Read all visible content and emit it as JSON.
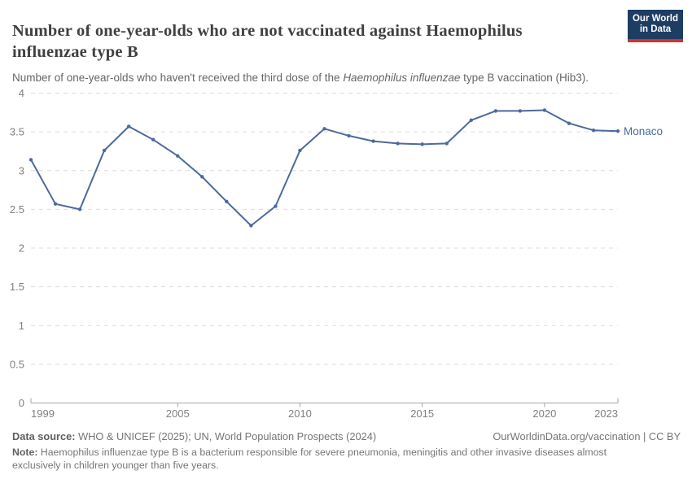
{
  "header": {
    "title": "Number of one-year-olds who are not vaccinated against Haemophilus influenzae type B",
    "subtitle_prefix": "Number of one-year-olds who haven't received the third dose of the ",
    "subtitle_italic": "Haemophilus influenzae",
    "subtitle_suffix": " type B vaccination (Hib3).",
    "logo_line1": "Our World",
    "logo_line2": "in Data"
  },
  "chart_data": {
    "type": "line",
    "title": "Number of one-year-olds who are not vaccinated against Haemophilus influenzae type B",
    "subtitle": "Number of one-year-olds who haven't received the third dose of the Haemophilus influenzae type B vaccination (Hib3).",
    "x": [
      1999,
      2000,
      2001,
      2002,
      2003,
      2004,
      2005,
      2006,
      2007,
      2008,
      2009,
      2010,
      2011,
      2012,
      2013,
      2014,
      2015,
      2016,
      2017,
      2018,
      2019,
      2020,
      2021,
      2022,
      2023
    ],
    "series": [
      {
        "name": "Monaco",
        "color": "#4c6a9c",
        "values": [
          3.14,
          2.57,
          2.5,
          3.26,
          3.57,
          3.4,
          3.19,
          2.92,
          2.6,
          2.29,
          2.54,
          3.26,
          3.54,
          3.45,
          3.38,
          3.35,
          3.34,
          3.35,
          3.65,
          3.77,
          3.77,
          3.78,
          3.61,
          3.52,
          3.51
        ]
      }
    ],
    "x_ticks": [
      1999,
      2005,
      2010,
      2015,
      2020,
      2023
    ],
    "y_ticks": [
      0,
      0.5,
      1,
      1.5,
      2,
      2.5,
      3,
      3.5,
      4
    ],
    "xlim": [
      1999,
      2023
    ],
    "ylim": [
      0,
      4
    ],
    "xlabel": "",
    "ylabel": "",
    "grid": "horizontal-dashed",
    "legend": "line-end entity label",
    "entity_label": "Monaco"
  },
  "footer": {
    "datasource_label": "Data source:",
    "datasource_text": " WHO & UNICEF (2025); UN, World Population Prospects (2024)",
    "rights": "OurWorldinData.org/vaccination | CC BY",
    "note_label": "Note:",
    "note_text": " Haemophilus influenzae type B is a bacterium responsible for severe pneumonia, meningitis and other invasive diseases almost exclusively in children younger than five years."
  },
  "colors": {
    "line": "#4c6a9c",
    "grid": "#dcdcdc",
    "axis": "#a6a6a6",
    "tick_text": "#808080",
    "title": "#404040",
    "subtitle": "#666666",
    "footer": "#757575",
    "logo_bg": "#1d3d63",
    "logo_red": "#d0342c"
  }
}
